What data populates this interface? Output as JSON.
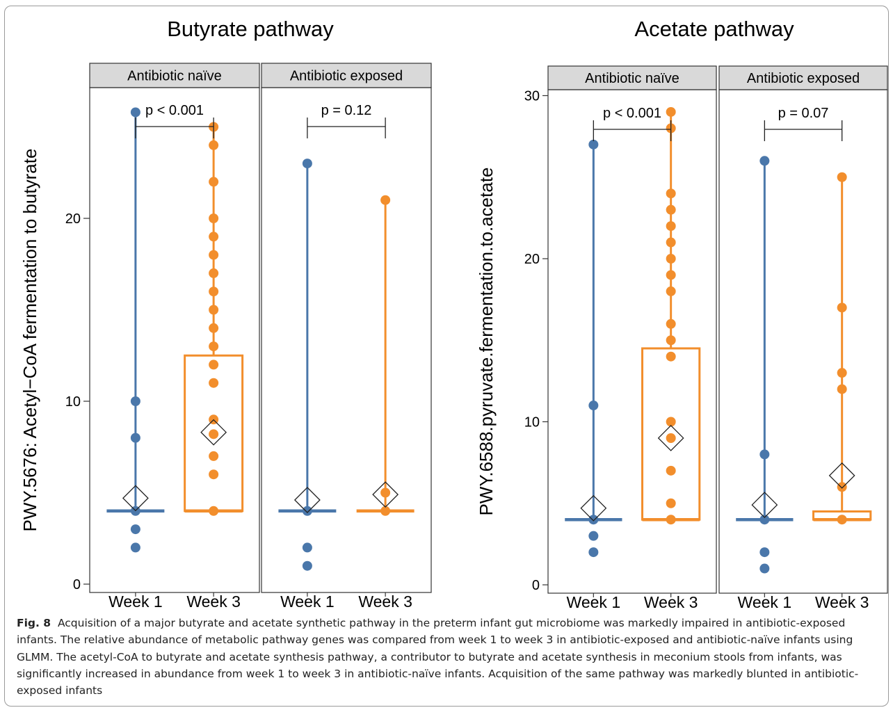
{
  "colors": {
    "week1": "#4a77aa",
    "week3": "#f28e2c",
    "strip": "#d9d9d9"
  },
  "caption": {
    "label": "Fig. 8",
    "text": "Acquisition of a major butyrate and acetate synthetic pathway in the preterm infant gut microbiome was markedly impaired in antibiotic-exposed infants. The relative abundance of metabolic pathway genes was compared from week 1 to week 3 in antibiotic-exposed and antibiotic-naïve infants using GLMM. The acetyl-CoA to butyrate and acetate synthesis pathway, a contributor to butyrate and acetate synthesis in meconium stools from infants, was significantly increased in abundance from week 1 to week 3 in antibiotic-naïve infants. Acquisition of the same pathway was markedly blunted in antibiotic-exposed infants"
  },
  "chart_data": [
    {
      "type": "scatter",
      "title": "Butyrate pathway",
      "ylabel": "PWY.5676: Acetyl−CoA fermentation to butyrate",
      "ylim": [
        0,
        26
      ],
      "yticks": [
        0,
        10,
        20
      ],
      "categories": [
        "Week 1",
        "Week 3"
      ],
      "grid": false,
      "panels": [
        {
          "label": "Antibiotic naïve",
          "p_value": "p < 0.001",
          "week1": {
            "points": [
              2,
              3,
              4,
              8,
              10,
              25.8
            ],
            "mean": 4.7,
            "box": [
              4,
              4,
              4
            ]
          },
          "week3": {
            "points": [
              4,
              6,
              7,
              8.2,
              9,
              11,
              12,
              13,
              14,
              15,
              16,
              17,
              18,
              19,
              20,
              22,
              24,
              25
            ],
            "mean": 8.3,
            "box": [
              4,
              4,
              12.5
            ]
          }
        },
        {
          "label": "Antibiotic exposed",
          "p_value": "p = 0.12",
          "week1": {
            "points": [
              1,
              2,
              4,
              23
            ],
            "mean": 4.6,
            "box": [
              4,
              4,
              4
            ]
          },
          "week3": {
            "points": [
              4,
              5,
              21
            ],
            "mean": 4.9,
            "box": [
              4,
              4,
              4
            ]
          }
        }
      ]
    },
    {
      "type": "scatter",
      "title": "Acetate pathway",
      "ylabel": "PWY.6588.pyruvate.fermentation.to.acetate",
      "ylim": [
        0,
        30
      ],
      "yticks": [
        0,
        10,
        20,
        30
      ],
      "categories": [
        "Week 1",
        "Week 3"
      ],
      "grid": false,
      "panels": [
        {
          "label": "Antibiotic naïve",
          "p_value": "p < 0.001",
          "week1": {
            "points": [
              2,
              3,
              4,
              11,
              27
            ],
            "mean": 4.7,
            "box": [
              4,
              4,
              4
            ]
          },
          "week3": {
            "points": [
              4,
              5,
              7,
              9,
              10,
              14,
              15,
              16,
              18,
              19,
              20,
              21,
              22,
              23,
              24,
              28,
              29
            ],
            "mean": 9,
            "box": [
              4,
              4,
              14.5
            ]
          }
        },
        {
          "label": "Antibiotic exposed",
          "p_value": "p = 0.07",
          "week1": {
            "points": [
              1,
              2,
              4,
              8,
              26
            ],
            "mean": 4.9,
            "box": [
              4,
              4,
              4
            ]
          },
          "week3": {
            "points": [
              4,
              6,
              12,
              13,
              17,
              25
            ],
            "mean": 6.7,
            "box": [
              4,
              4,
              4.5
            ]
          }
        }
      ]
    }
  ]
}
